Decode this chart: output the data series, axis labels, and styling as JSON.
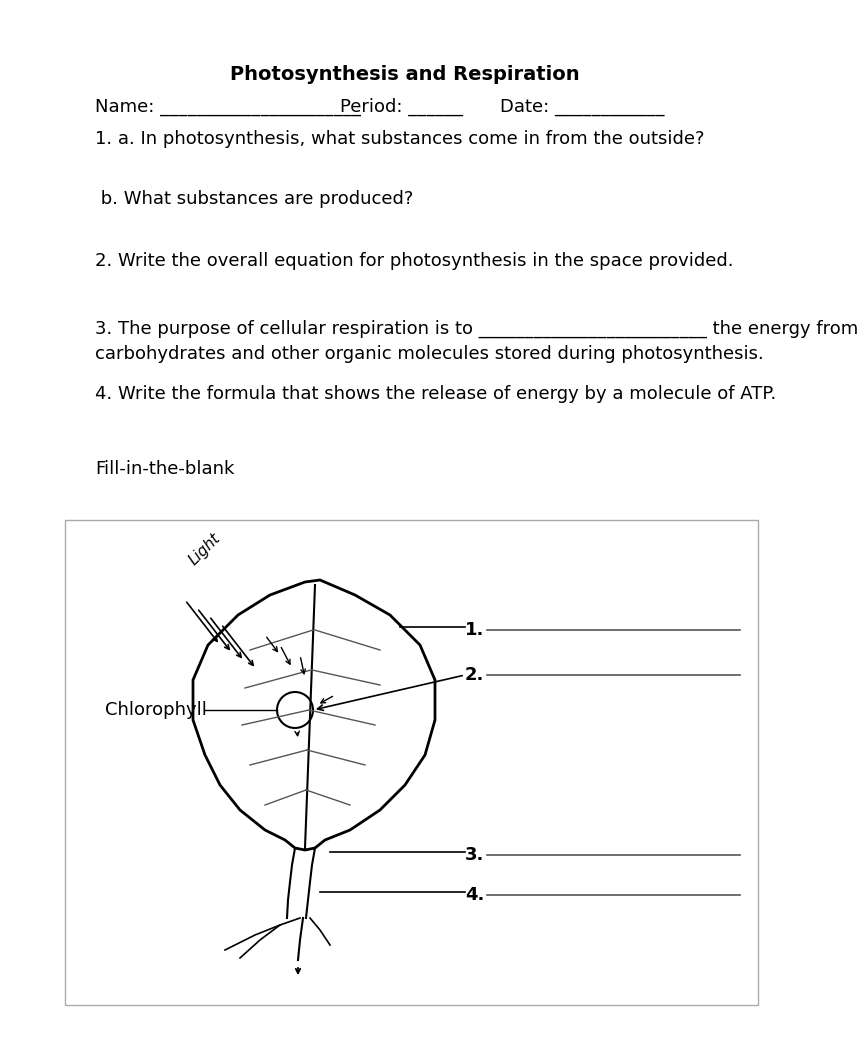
{
  "title": "Photosynthesis and Respiration",
  "bg_color": "#ffffff",
  "text_color": "#1a1a1a",
  "q1a": "1. a. In photosynthesis, what substances come in from the outside?",
  "q1b": " b. What substances are produced?",
  "q2": "2. Write the overall equation for photosynthesis in the space provided.",
  "q3a": "3. The purpose of cellular respiration is to _________________________ the energy from",
  "q3b": "carbohydrates and other organic molecules stored during photosynthesis.",
  "q4": "4. Write the formula that shows the release of energy by a molecule of ATP.",
  "fill_label": "Fill-in-the-blank",
  "chlorophyll_label": "Chlorophyll",
  "light_label": "Light",
  "label1": "1.",
  "label2": "2.",
  "label3": "3.",
  "label4": "4."
}
